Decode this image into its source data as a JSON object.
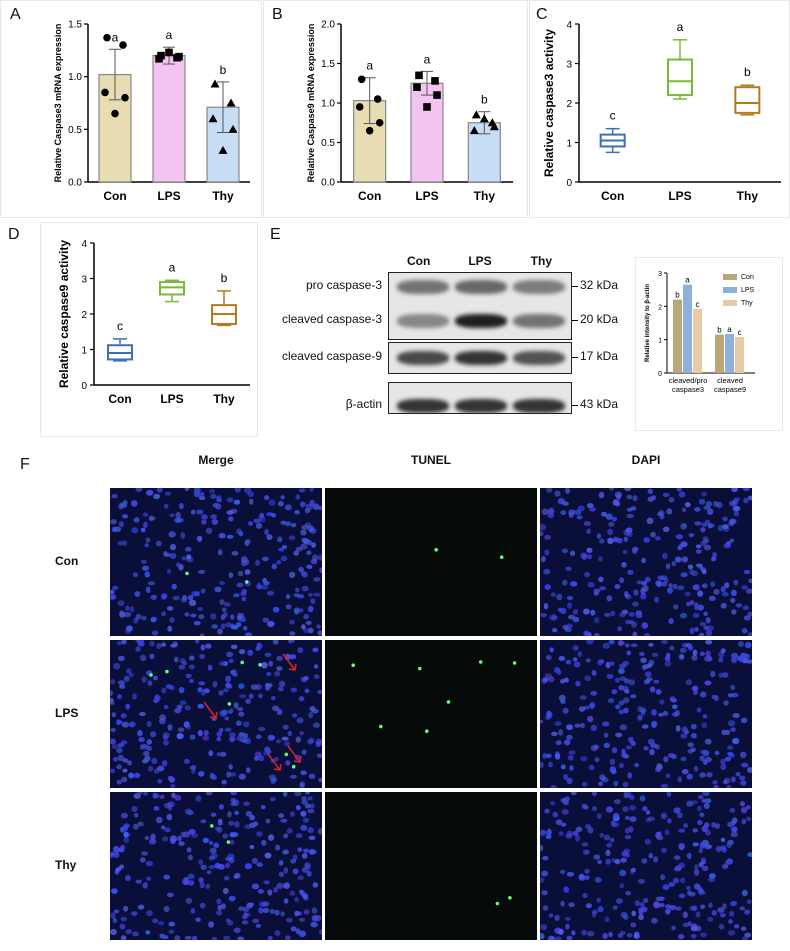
{
  "panels": {
    "A": "A",
    "B": "B",
    "C": "C",
    "D": "D",
    "E": "E",
    "F": "F"
  },
  "chart_data": [
    {
      "id": "A",
      "type": "bar",
      "ylabel": "Relative Caspase3 mRNA expression",
      "categories": [
        "Con",
        "LPS",
        "Thy"
      ],
      "values": [
        1.02,
        1.2,
        0.71
      ],
      "errors": [
        0.24,
        0.08,
        0.24
      ],
      "letters": [
        "a",
        "a",
        "b"
      ],
      "points": [
        [
          1.37,
          1.3,
          0.85,
          0.8,
          0.65
        ],
        [
          1.2,
          1.18,
          1.17,
          1.19,
          1.23
        ],
        [
          0.93,
          0.75,
          0.6,
          0.5,
          0.3
        ]
      ],
      "ylim": [
        0,
        1.5
      ],
      "ticks": [
        0.0,
        0.5,
        1.0,
        1.5
      ],
      "colors": [
        "#e8dcb3",
        "#f4c4f0",
        "#c7dcf5"
      ]
    },
    {
      "id": "B",
      "type": "bar",
      "ylabel": "Relative Caspase9 mRNA expression",
      "categories": [
        "Con",
        "LPS",
        "Thy"
      ],
      "values": [
        1.03,
        1.25,
        0.75
      ],
      "errors": [
        0.29,
        0.15,
        0.14
      ],
      "letters": [
        "a",
        "a",
        "b"
      ],
      "points": [
        [
          1.3,
          1.05,
          0.95,
          0.75,
          0.65
        ],
        [
          1.35,
          1.28,
          1.2,
          1.1,
          0.95
        ],
        [
          0.85,
          0.75,
          0.65,
          0.7,
          0.8
        ]
      ],
      "ylim": [
        0,
        2.0
      ],
      "ticks": [
        0.0,
        0.5,
        1.0,
        1.5,
        2.0
      ],
      "colors": [
        "#e8dcb3",
        "#f4c4f0",
        "#c7dcf5"
      ]
    },
    {
      "id": "C",
      "type": "box",
      "ylabel": "Relative caspase3 activity",
      "categories": [
        "Con",
        "LPS",
        "Thy"
      ],
      "boxes": [
        {
          "min": 0.75,
          "q1": 0.9,
          "med": 1.05,
          "q3": 1.2,
          "max": 1.35
        },
        {
          "min": 2.1,
          "q1": 2.2,
          "med": 2.55,
          "q3": 3.1,
          "max": 3.6
        },
        {
          "min": 1.7,
          "q1": 1.75,
          "med": 2.0,
          "q3": 2.4,
          "max": 2.45
        }
      ],
      "letters": [
        "c",
        "a",
        "b"
      ],
      "ylim": [
        0,
        4
      ],
      "ticks": [
        0,
        1,
        2,
        3,
        4
      ],
      "colors": [
        "#3f6fb0",
        "#7ab83a",
        "#b57a1e"
      ]
    },
    {
      "id": "D",
      "type": "box",
      "ylabel": "Relative caspase9 activity",
      "categories": [
        "Con",
        "LPS",
        "Thy"
      ],
      "boxes": [
        {
          "min": 0.68,
          "q1": 0.72,
          "med": 0.9,
          "q3": 1.12,
          "max": 1.3
        },
        {
          "min": 2.35,
          "q1": 2.55,
          "med": 2.75,
          "q3": 2.9,
          "max": 2.95
        },
        {
          "min": 1.68,
          "q1": 1.72,
          "med": 2.0,
          "q3": 2.25,
          "max": 2.65
        }
      ],
      "letters": [
        "c",
        "a",
        "b"
      ],
      "ylim": [
        0,
        4
      ],
      "ticks": [
        0,
        1,
        2,
        3,
        4
      ],
      "colors": [
        "#3f6fb0",
        "#7ab83a",
        "#b57a1e"
      ]
    },
    {
      "id": "E-bar",
      "type": "bar",
      "ylabel": "Relative intensity to β-actin",
      "groups": [
        "cleaved/pro caspase3",
        "cleaved caspase9"
      ],
      "series": [
        {
          "name": "Con",
          "values": [
            2.2,
            1.15
          ],
          "color": "#b9a877"
        },
        {
          "name": "LPS",
          "values": [
            2.65,
            1.17
          ],
          "color": "#8fb0d9"
        },
        {
          "name": "Thy",
          "values": [
            1.92,
            1.08
          ],
          "color": "#e8caa8"
        }
      ],
      "letters": [
        [
          "b",
          "a",
          "c"
        ],
        [
          "b",
          "a",
          "c"
        ]
      ],
      "ylim": [
        0,
        3
      ],
      "ticks": [
        0,
        1,
        2,
        3
      ]
    }
  ],
  "western": {
    "lanes": [
      "Con",
      "LPS",
      "Thy"
    ],
    "rows": [
      {
        "label": "pro caspase-3",
        "size": "32 kDa"
      },
      {
        "label": "cleaved caspase-3",
        "size": "20 kDa"
      },
      {
        "label": "cleaved caspase-9",
        "size": "17 kDa"
      },
      {
        "label": "β-actin",
        "size": "43 kDa"
      }
    ]
  },
  "tunel": {
    "columns": [
      "Merge",
      "TUNEL",
      "DAPI"
    ],
    "rows": [
      "Con",
      "LPS",
      "Thy"
    ]
  }
}
